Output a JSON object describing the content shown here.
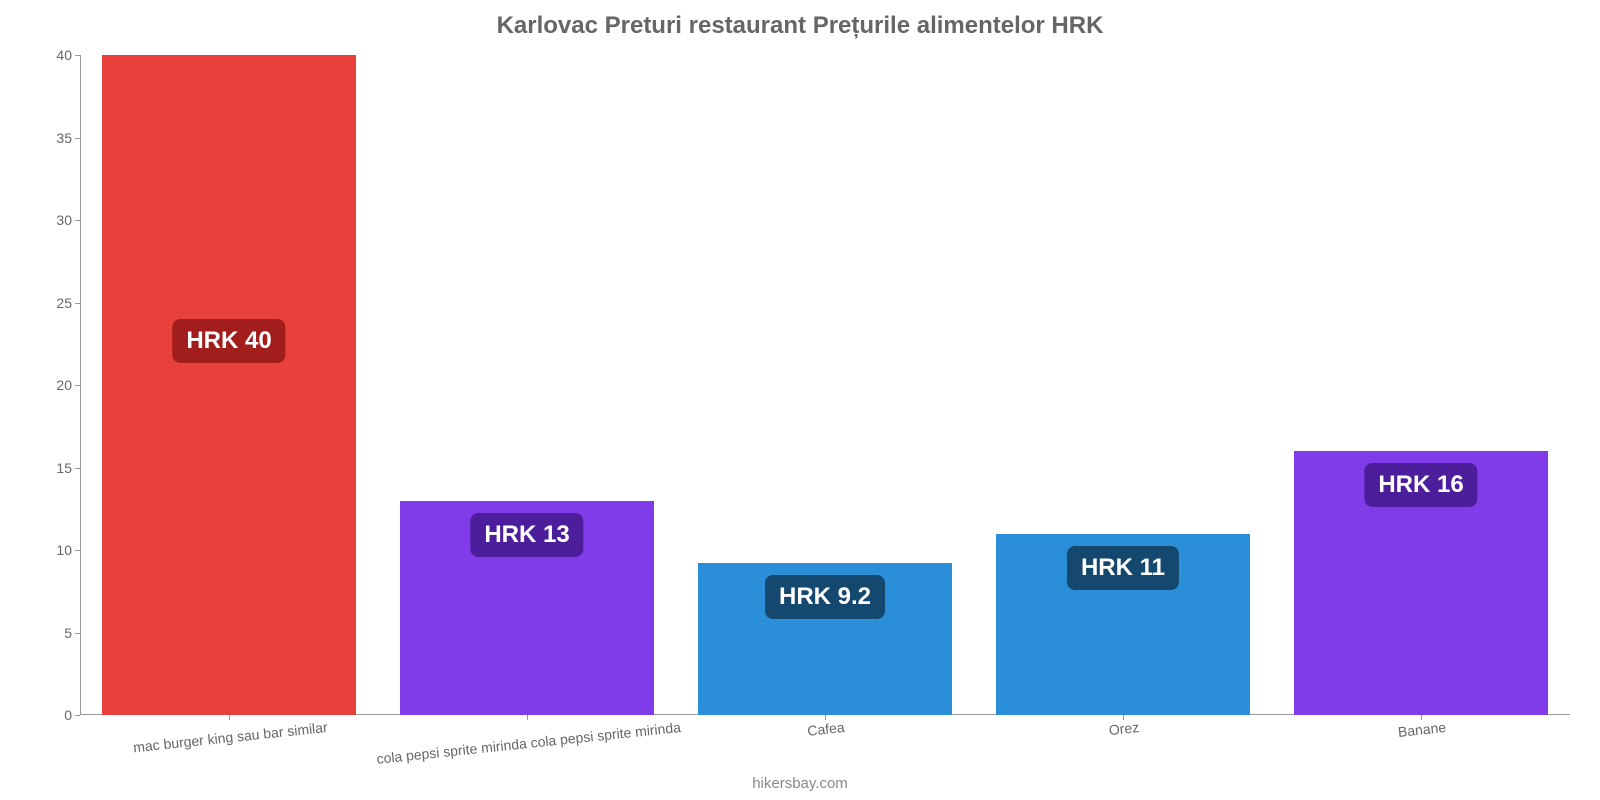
{
  "chart": {
    "type": "bar",
    "title": "Karlovac Preturi restaurant Prețurile alimentelor HRK",
    "title_color": "#666666",
    "title_fontsize": 24,
    "background_color": "#ffffff",
    "axis_color": "#999999",
    "tick_color": "#666666",
    "tick_fontsize": 14,
    "value_label_fontsize": 24,
    "value_label_text_color": "#ffffff",
    "x_label_rotation_deg": -6,
    "ylim": [
      0,
      40
    ],
    "ytick_step": 5,
    "yticks": [
      0,
      5,
      10,
      15,
      20,
      25,
      30,
      35,
      40
    ],
    "bar_width_ratio": 0.85,
    "categories": [
      "mac burger king sau bar similar",
      "cola pepsi sprite mirinda cola pepsi sprite mirinda",
      "Cafea",
      "Orez",
      "Banane"
    ],
    "values": [
      40,
      13,
      9.2,
      11,
      16
    ],
    "value_labels": [
      "HRK 40",
      "HRK 13",
      "HRK 9.2",
      "HRK 11",
      "HRK 16"
    ],
    "bar_colors": [
      "#e8403c",
      "#7f3ce8",
      "#2a8fd8",
      "#2a8fd8",
      "#7f3ce8"
    ],
    "badge_bg_colors": [
      "#a21e1d",
      "#4d1e9c",
      "#14486e",
      "#14486e",
      "#4d1e9c"
    ]
  },
  "footer": "hikersbay.com"
}
